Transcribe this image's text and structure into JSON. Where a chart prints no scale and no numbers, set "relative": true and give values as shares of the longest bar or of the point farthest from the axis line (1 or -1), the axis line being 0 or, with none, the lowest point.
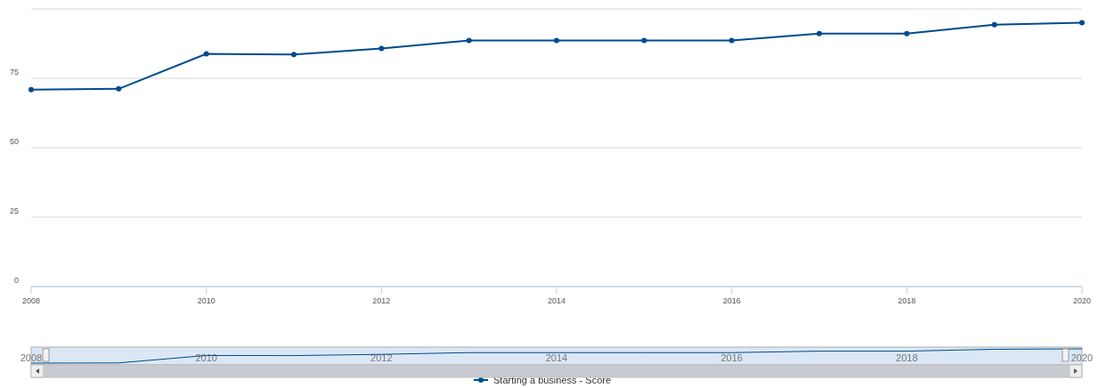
{
  "chart_data": [
    {
      "type": "line",
      "x": [
        2008,
        2009,
        2010,
        2011,
        2012,
        2013,
        2014,
        2015,
        2016,
        2017,
        2018,
        2019,
        2020
      ],
      "series": [
        {
          "name": "Starting a business - Score",
          "color": "#004b8d",
          "values": [
            70.9,
            71.2,
            83.8,
            83.6,
            85.7,
            88.6,
            88.6,
            88.6,
            88.6,
            91.1,
            91.1,
            94.3,
            95.0
          ]
        }
      ],
      "xlim": [
        2008,
        2020
      ],
      "xticks": [
        2008,
        2010,
        2012,
        2014,
        2016,
        2018,
        2020
      ],
      "ylim": [
        0,
        100
      ],
      "yticks": [
        0,
        25,
        50,
        75,
        {
          "value": 100,
          "label": null
        }
      ],
      "grid": "y",
      "marker": "circle",
      "line_style": "solid",
      "legend": "bottom"
    },
    {
      "type": "line",
      "x": [
        2008,
        2009,
        2010,
        2011,
        2012,
        2013,
        2014,
        2015,
        2016,
        2017,
        2018,
        2019,
        2020
      ],
      "relative": true,
      "series": [
        {
          "color": "#004b8d",
          "values": [
            0,
            0.012,
            0.535,
            0.527,
            0.614,
            0.734,
            0.734,
            0.734,
            0.734,
            0.838,
            0.838,
            0.971,
            1
          ]
        }
      ],
      "xlim": [
        2008,
        2020
      ],
      "xticks": [
        2008,
        2010,
        2012,
        2014,
        2016,
        2018,
        2020
      ],
      "tick_labels": "x",
      "marker": "none"
    }
  ]
}
